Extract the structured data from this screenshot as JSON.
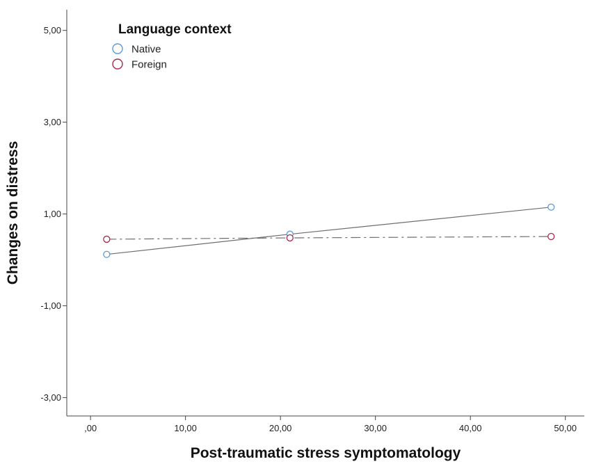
{
  "chart_data": {
    "type": "line",
    "title": "",
    "xlabel": "Post-traumatic stress symptomatology",
    "ylabel": "Changes on distress",
    "xlim": [
      -2.5,
      52
    ],
    "ylim": [
      -3.4,
      5.45
    ],
    "x_ticks": [
      {
        "value": 0,
        "label": ",00"
      },
      {
        "value": 10,
        "label": "10,00"
      },
      {
        "value": 20,
        "label": "20,00"
      },
      {
        "value": 30,
        "label": "30,00"
      },
      {
        "value": 40,
        "label": "40,00"
      },
      {
        "value": 50,
        "label": "50,00"
      }
    ],
    "y_ticks": [
      {
        "value": 5,
        "label": "5,00"
      },
      {
        "value": 3,
        "label": "3,00"
      },
      {
        "value": 1,
        "label": "1,00"
      },
      {
        "value": -1,
        "label": "-1,00"
      },
      {
        "value": -3,
        "label": "-3,00"
      }
    ],
    "grid": false,
    "legend": {
      "title": "Language context",
      "position": "top-left"
    },
    "series": [
      {
        "name": "Native",
        "color": "#5b9bd5",
        "line_color": "#6e6e6e",
        "line_style": "solid",
        "points": [
          {
            "x": 1.7,
            "y": 0.12
          },
          {
            "x": 21.0,
            "y": 0.56
          },
          {
            "x": 48.5,
            "y": 1.15
          }
        ]
      },
      {
        "name": "Foreign",
        "color": "#a8294c",
        "line_color": "#6e6e6e",
        "line_style": "dash-dot",
        "points": [
          {
            "x": 1.7,
            "y": 0.45
          },
          {
            "x": 21.0,
            "y": 0.48
          },
          {
            "x": 48.5,
            "y": 0.51
          }
        ]
      }
    ]
  }
}
